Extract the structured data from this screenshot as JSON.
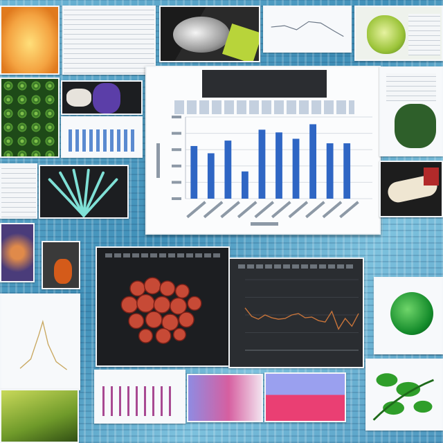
{
  "collage": {
    "tiles": [
      {
        "name": "orange-coral-image",
        "kind": "image"
      },
      {
        "name": "document-table-sheet",
        "kind": "document"
      },
      {
        "name": "hedgehog-image",
        "kind": "image"
      },
      {
        "name": "line-chart-document",
        "kind": "chart"
      },
      {
        "name": "green-cell-image",
        "kind": "image"
      },
      {
        "name": "green-cluster-image",
        "kind": "image"
      },
      {
        "name": "purple-specimen-image",
        "kind": "image"
      },
      {
        "name": "mini-bar-chart",
        "kind": "chart"
      },
      {
        "name": "fan-coral-image",
        "kind": "image"
      },
      {
        "name": "bone-specimen-image",
        "kind": "image"
      },
      {
        "name": "red-cluster-dark-panel",
        "kind": "image"
      },
      {
        "name": "dark-line-chart-panel",
        "kind": "chart"
      },
      {
        "name": "green-sphere-image",
        "kind": "image"
      },
      {
        "name": "green-plant-image",
        "kind": "image"
      },
      {
        "name": "pink-heatmap-image",
        "kind": "image"
      }
    ]
  },
  "chart_data": [
    {
      "type": "bar",
      "categories": [
        "",
        "",
        "",
        "",
        "",
        "",
        "",
        "",
        "",
        "",
        ""
      ],
      "values": [
        58,
        50,
        64,
        30,
        76,
        73,
        66,
        82,
        61,
        61,
        0
      ],
      "ylim": [
        0,
        90
      ],
      "grid": true,
      "colors": {
        "bar": "#2f66c4",
        "grid": "#d7dce2"
      }
    },
    {
      "type": "line",
      "x": [
        0,
        1,
        2,
        3,
        4,
        5,
        6,
        7,
        8,
        9,
        10,
        11,
        12,
        13,
        14,
        15,
        16,
        17
      ],
      "values": [
        60,
        48,
        44,
        50,
        46,
        44,
        45,
        50,
        52,
        46,
        47,
        42,
        40,
        55,
        30,
        45,
        34,
        52
      ],
      "ylim": [
        0,
        100
      ],
      "colors": {
        "line": "#c8743a",
        "background": "#2a2d31"
      }
    }
  ]
}
